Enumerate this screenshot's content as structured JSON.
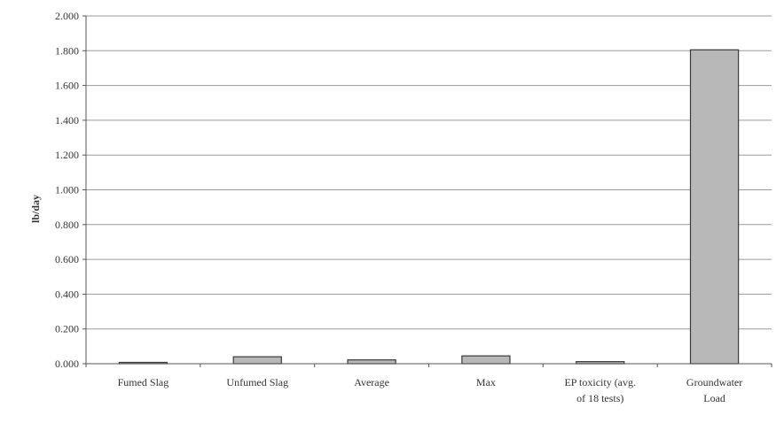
{
  "chart_data": {
    "type": "bar",
    "title": "",
    "xlabel": "",
    "ylabel": "lb/day",
    "ylim": [
      0,
      2.0
    ],
    "yticks": [
      "0.000",
      "0.200",
      "0.400",
      "0.600",
      "0.800",
      "1.000",
      "1.200",
      "1.400",
      "1.600",
      "1.800",
      "2.000"
    ],
    "categories": [
      [
        "Fumed Slag"
      ],
      [
        "Unfumed Slag"
      ],
      [
        "Average"
      ],
      [
        "Max"
      ],
      [
        "EP toxicity (avg.",
        "of 18 tests)"
      ],
      [
        "Groundwater",
        "Load"
      ]
    ],
    "values": [
      0.005,
      0.04,
      0.022,
      0.045,
      0.012,
      1.805
    ],
    "grid": true,
    "legend": "none",
    "colors": {
      "bar_fill": "#b8b8b8",
      "bar_stroke": "#3a3a3a",
      "grid": "#9a9a9a",
      "axis": "#555555"
    }
  }
}
